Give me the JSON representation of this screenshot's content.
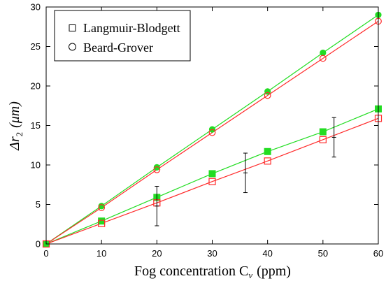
{
  "chart_data": {
    "type": "scatter",
    "xlabel": "Fog concentration C",
    "xlabel_sub": "v",
    "xlabel_unit": "(ppm)",
    "ylabel": "Δr",
    "ylabel_sub": "2",
    "ylabel_unit": "(μm)",
    "xlim": [
      0,
      60
    ],
    "ylim": [
      0,
      30
    ],
    "xticks": [
      "0",
      "10",
      "20",
      "30",
      "40",
      "50",
      "60"
    ],
    "yticks": [
      "0",
      "5",
      "10",
      "15",
      "20",
      "25",
      "30"
    ],
    "grid": false,
    "legend_position": "top-left",
    "legend": [
      {
        "label": "Langmuir-Blodgett",
        "marker": "square"
      },
      {
        "label": "Beard-Grover",
        "marker": "circle"
      }
    ],
    "series": [
      {
        "model": "Beard-Grover",
        "style": "green-filled-circle",
        "color": "#22dd22",
        "x": [
          0,
          10,
          20,
          30,
          40,
          50,
          60
        ],
        "y": [
          0,
          4.8,
          9.7,
          14.5,
          19.3,
          24.2,
          29.0
        ]
      },
      {
        "model": "Beard-Grover",
        "style": "red-open-circle",
        "color": "#ff2a2a",
        "x": [
          0,
          10,
          20,
          30,
          40,
          50,
          60
        ],
        "y": [
          0,
          4.6,
          9.4,
          14.1,
          18.8,
          23.5,
          28.2
        ]
      },
      {
        "model": "Langmuir-Blodgett",
        "style": "green-filled-square",
        "color": "#22dd22",
        "x": [
          0,
          10,
          20,
          30,
          40,
          50,
          60
        ],
        "y": [
          0,
          2.9,
          5.9,
          8.9,
          11.7,
          14.2,
          17.1
        ]
      },
      {
        "model": "Langmuir-Blodgett",
        "style": "red-open-square",
        "color": "#ff2a2a",
        "x": [
          0,
          10,
          20,
          30,
          40,
          50,
          60
        ],
        "y": [
          0,
          2.6,
          5.2,
          7.9,
          10.5,
          13.2,
          15.9
        ]
      }
    ],
    "error_bars": {
      "color": "#000000",
      "points": [
        {
          "x": 20,
          "y": 4.8,
          "low": 2.3,
          "high": 7.3
        },
        {
          "x": 36,
          "y": 9.0,
          "low": 6.5,
          "high": 11.5
        },
        {
          "x": 52,
          "y": 13.5,
          "low": 11.0,
          "high": 16.0
        }
      ]
    }
  }
}
